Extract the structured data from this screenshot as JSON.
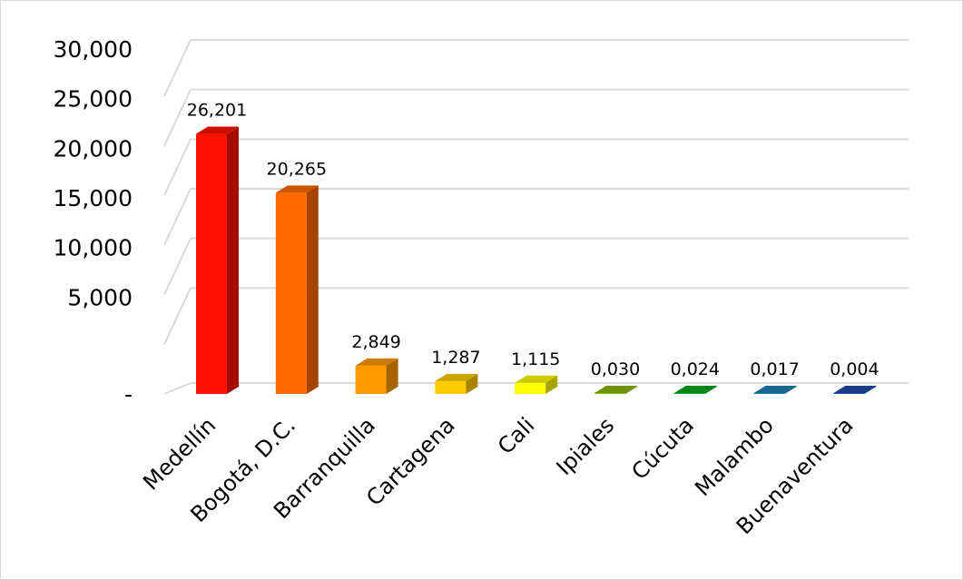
{
  "chart_data": {
    "type": "bar",
    "title": "",
    "xlabel": "",
    "ylabel": "",
    "ylim": [
      0,
      30000
    ],
    "grid": true,
    "legend": "none",
    "y_ticks": [
      {
        "value": 0,
        "label": "-"
      },
      {
        "value": 5000,
        "label": "5,000"
      },
      {
        "value": 10000,
        "label": "10,000"
      },
      {
        "value": 15000,
        "label": "15,000"
      },
      {
        "value": 20000,
        "label": "20,000"
      },
      {
        "value": 25000,
        "label": "25,000"
      },
      {
        "value": 30000,
        "label": "30,000"
      }
    ],
    "categories": [
      "Medellín",
      "Bogotá, D.C.",
      "Barranquilla",
      "Cartagena",
      "Cali",
      "Ipiales",
      "Cúcuta",
      "Malambo",
      "Buenaventura"
    ],
    "values": [
      26201,
      20265,
      2849,
      1287,
      1115,
      30,
      24,
      17,
      4
    ],
    "data_labels": [
      "26,201",
      "20,265",
      "2,849",
      "1,287",
      "1,115",
      "0,030",
      "0,024",
      "0,017",
      "0,004"
    ],
    "colors": [
      "#ff1100",
      "#ff6a00",
      "#ff9900",
      "#ffcc00",
      "#ffff00",
      "#8db600",
      "#00a61c",
      "#1f7fb8",
      "#1f4ea8"
    ]
  }
}
